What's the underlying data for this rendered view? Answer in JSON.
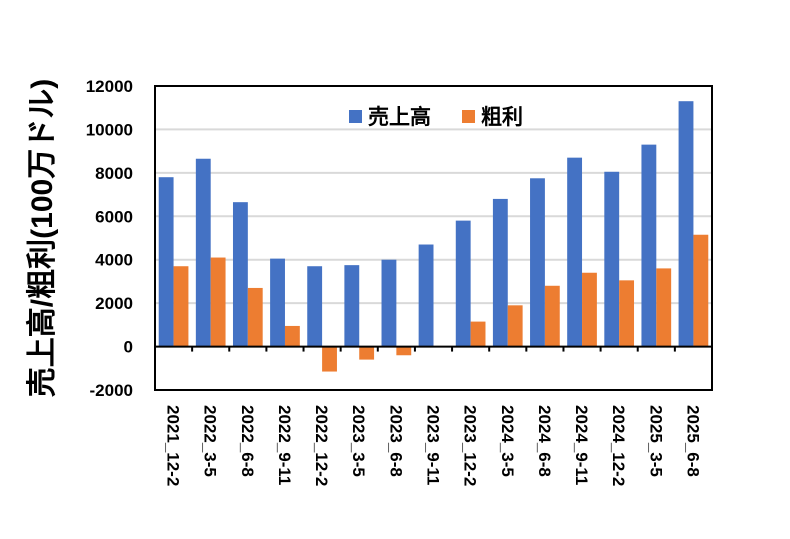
{
  "chart_data": {
    "type": "bar",
    "title": "",
    "xlabel": "",
    "ylabel": "売上高/粗利(100万ドル)",
    "ylim": [
      -2000,
      12000
    ],
    "yticks": [
      -2000,
      0,
      2000,
      4000,
      6000,
      8000,
      10000,
      12000
    ],
    "grid": true,
    "legend_position": "top-center",
    "categories": [
      "2021_12-2",
      "2022_3-5",
      "2022_6-8",
      "2022_9-11",
      "2022_12-2",
      "2023_3-5",
      "2023_6-8",
      "2023_9-11",
      "2023_12-2",
      "2024_3-5",
      "2024_6-8",
      "2024_9-11",
      "2024_12-2",
      "2025_3-5",
      "2025_6-8"
    ],
    "series": [
      {
        "name": "売上高",
        "color": "#4472C4",
        "values": [
          7800,
          8650,
          6650,
          4050,
          3700,
          3750,
          4000,
          4700,
          5800,
          6800,
          7750,
          8700,
          8050,
          9300,
          11300
        ]
      },
      {
        "name": "粗利",
        "color": "#ED7D31",
        "values": [
          3700,
          4100,
          2700,
          950,
          -1150,
          -600,
          -400,
          0,
          1150,
          1900,
          2800,
          3400,
          3050,
          3600,
          5150
        ]
      }
    ]
  }
}
